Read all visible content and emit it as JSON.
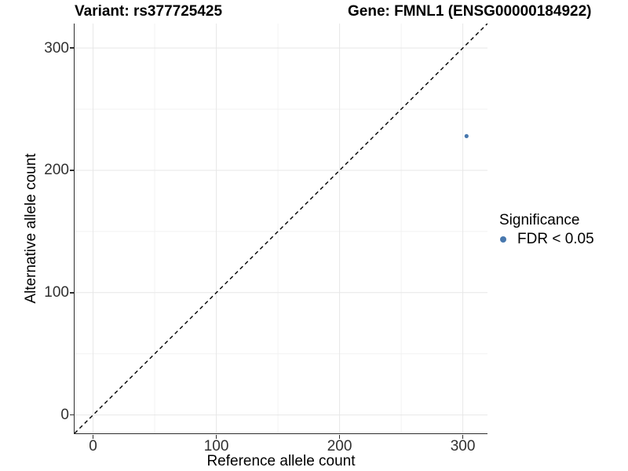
{
  "chart_data": {
    "type": "scatter",
    "title_left": "Variant: rs377725425",
    "title_right": "Gene: FMNL1 (ENSG00000184922)",
    "xlabel": "Reference allele count",
    "ylabel": "Alternative allele count",
    "xlim": [
      -15,
      320
    ],
    "ylim": [
      -15,
      320
    ],
    "x_ticks": [
      0,
      100,
      200,
      300
    ],
    "y_ticks": [
      0,
      100,
      200,
      300
    ],
    "x_tick_labels": [
      "0",
      "100",
      "200",
      "300"
    ],
    "y_tick_labels": [
      "0",
      "100",
      "200",
      "300"
    ],
    "x_minor_gridlines": [
      50,
      150,
      250
    ],
    "y_minor_gridlines": [
      50,
      150,
      250
    ],
    "grid": "major and minor gridlines, light gray, white panel background",
    "points": [
      {
        "x": 303,
        "y": 228,
        "series": "FDR < 0.05"
      }
    ],
    "reference_line": {
      "kind": "identity y=x",
      "style": "dashed",
      "color": "#000000"
    },
    "legend": {
      "title": "Significance",
      "position": "right-center",
      "entries": [
        {
          "label": "FDR < 0.05",
          "marker": "circle",
          "color": "#4878AE"
        }
      ]
    },
    "colors": {
      "point": "#4878AE",
      "grid_major": "#E7E7E7",
      "grid_minor": "#F2F2F2",
      "axis_line": "#2E2E2E",
      "tick_text": "#303030",
      "background": "#FFFFFF"
    }
  }
}
